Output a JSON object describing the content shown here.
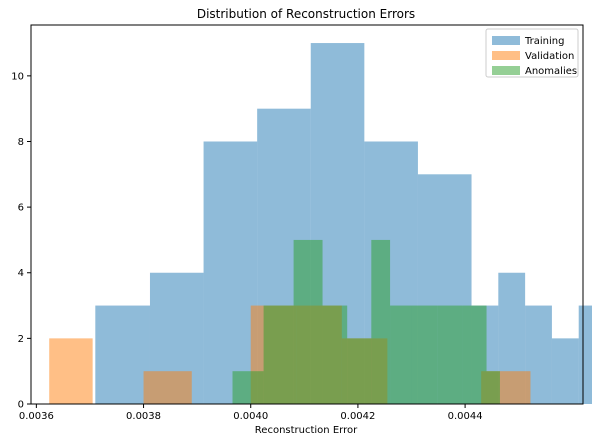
{
  "chart_data": {
    "type": "bar",
    "title": "Distribution of Reconstruction Errors",
    "xlabel": "Reconstruction Error",
    "ylabel": "",
    "xlim": [
      0.00359,
      0.00462
    ],
    "ylim": [
      0,
      11.55
    ],
    "x_ticks": [
      0.0036,
      0.0038,
      0.004,
      0.0042,
      0.0044
    ],
    "x_tick_labels": [
      "0.0036",
      "0.0038",
      "0.0040",
      "0.0042",
      "0.0044"
    ],
    "y_ticks": [
      0,
      2,
      4,
      6,
      8,
      10
    ],
    "y_tick_labels": [
      "0",
      "2",
      "4",
      "6",
      "8",
      "10"
    ],
    "grid": false,
    "legend_position": "top-right",
    "series": [
      {
        "name": "Training",
        "color": "#1f77b4",
        "alpha": 0.5,
        "bins": [
          {
            "start": 0.00371,
            "end": 0.003812,
            "count": 3
          },
          {
            "start": 0.003812,
            "end": 0.003912,
            "count": 4
          },
          {
            "start": 0.003912,
            "end": 0.004012,
            "count": 8
          },
          {
            "start": 0.004012,
            "end": 0.004112,
            "count": 9
          },
          {
            "start": 0.004112,
            "end": 0.004212,
            "count": 11
          },
          {
            "start": 0.004212,
            "end": 0.004312,
            "count": 8
          },
          {
            "start": 0.004312,
            "end": 0.004412,
            "count": 7
          },
          {
            "start": 0.004412,
            "end": 0.004462,
            "count": 3
          },
          {
            "start": 0.004462,
            "end": 0.004512,
            "count": 4
          },
          {
            "start": 0.004512,
            "end": 0.004562,
            "count": 3
          },
          {
            "start": 0.004562,
            "end": 0.004612,
            "count": 2
          },
          {
            "start": 0.004612,
            "end": 0.004652,
            "count": 3
          }
        ]
      },
      {
        "name": "Validation",
        "color": "#ff7f0e",
        "alpha": 0.5,
        "bins": [
          {
            "start": 0.003624,
            "end": 0.003705,
            "count": 2
          },
          {
            "start": 0.003705,
            "end": 0.0038,
            "count": 0
          },
          {
            "start": 0.0038,
            "end": 0.00389,
            "count": 1
          },
          {
            "start": 0.00389,
            "end": 0.00398,
            "count": 0
          },
          {
            "start": 0.00398,
            "end": 0.004,
            "count": 0
          },
          {
            "start": 0.004,
            "end": 0.004085,
            "count": 3
          },
          {
            "start": 0.004085,
            "end": 0.00417,
            "count": 3
          },
          {
            "start": 0.00417,
            "end": 0.004255,
            "count": 2
          },
          {
            "start": 0.004255,
            "end": 0.00434,
            "count": 0
          },
          {
            "start": 0.00434,
            "end": 0.00443,
            "count": 0
          },
          {
            "start": 0.00443,
            "end": 0.004522,
            "count": 1
          }
        ]
      },
      {
        "name": "Anomalies",
        "color": "#2ca02c",
        "alpha": 0.5,
        "bins": [
          {
            "start": 0.003966,
            "end": 0.004024,
            "count": 1
          },
          {
            "start": 0.004024,
            "end": 0.00408,
            "count": 3
          },
          {
            "start": 0.00408,
            "end": 0.004134,
            "count": 5
          },
          {
            "start": 0.004134,
            "end": 0.00418,
            "count": 3
          },
          {
            "start": 0.00418,
            "end": 0.004225,
            "count": 2
          },
          {
            "start": 0.004225,
            "end": 0.00426,
            "count": 5
          },
          {
            "start": 0.00426,
            "end": 0.0043,
            "count": 3
          },
          {
            "start": 0.0043,
            "end": 0.004348,
            "count": 3
          },
          {
            "start": 0.004348,
            "end": 0.004395,
            "count": 3
          },
          {
            "start": 0.004395,
            "end": 0.00444,
            "count": 3
          },
          {
            "start": 0.00444,
            "end": 0.004465,
            "count": 1
          }
        ]
      }
    ]
  }
}
